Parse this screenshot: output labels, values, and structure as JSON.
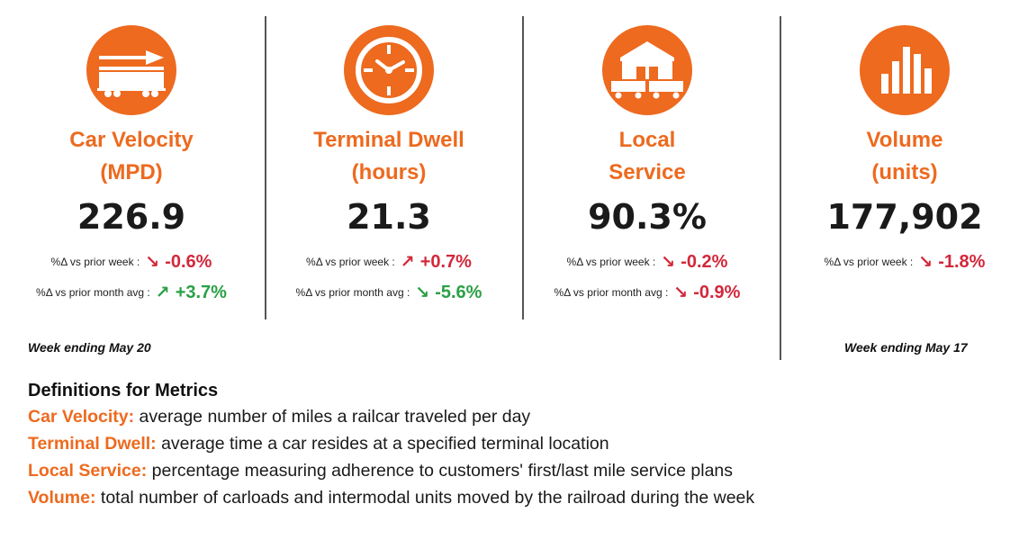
{
  "colors": {
    "accent": "#ed6a1f",
    "negative": "#d2283b",
    "positive": "#2aa045",
    "text": "#1a1a1a"
  },
  "metrics": [
    {
      "icon": "railcar-velocity-icon",
      "title_line1": "Car Velocity",
      "title_line2": "(MPD)",
      "value": "226.9",
      "deltas": [
        {
          "label": "%Δ vs prior week :",
          "arrow": "↘",
          "value": "-0.6%",
          "direction": "negative"
        },
        {
          "label": "%Δ vs prior month avg :",
          "arrow": "↗",
          "value": "+3.7%",
          "direction": "positive"
        }
      ]
    },
    {
      "icon": "clock-icon",
      "title_line1": "Terminal Dwell",
      "title_line2": "(hours)",
      "value": "21.3",
      "deltas": [
        {
          "label": "%Δ vs prior week :",
          "arrow": "↗",
          "value": "+0.7%",
          "direction": "negative"
        },
        {
          "label": "%Δ vs prior month avg :",
          "arrow": "↘",
          "value": "-5.6%",
          "direction": "positive"
        }
      ]
    },
    {
      "icon": "warehouse-railcar-icon",
      "title_line1": "Local",
      "title_line2": "Service",
      "value": "90.3%",
      "deltas": [
        {
          "label": "%Δ vs prior week :",
          "arrow": "↘",
          "value": "-0.2%",
          "direction": "negative"
        },
        {
          "label": "%Δ vs prior month avg :",
          "arrow": "↘",
          "value": "-0.9%",
          "direction": "negative"
        }
      ]
    },
    {
      "icon": "bar-chart-icon",
      "title_line1": "Volume",
      "title_line2": "(units)",
      "value": "177,902",
      "deltas": [
        {
          "label": "%Δ vs prior week :",
          "arrow": "↘",
          "value": "-1.8%",
          "direction": "negative"
        }
      ]
    }
  ],
  "week_left": "Week ending May 20",
  "week_right": "Week ending May 17",
  "definitions": {
    "title": "Definitions for Metrics",
    "items": [
      {
        "term": "Car Velocity:",
        "text": " average number of miles a railcar traveled per day"
      },
      {
        "term": "Terminal Dwell:",
        "text": " average time a car resides at a specified terminal location"
      },
      {
        "term": "Local Service:",
        "text": " percentage measuring adherence to customers' first/last mile service plans"
      },
      {
        "term": "Volume:",
        "text": " total number of carloads and intermodal units moved by the railroad during the week"
      }
    ]
  }
}
